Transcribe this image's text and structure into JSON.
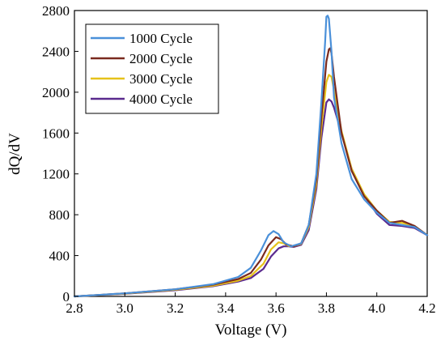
{
  "chart_data": {
    "type": "line",
    "xlabel": "Voltage (V)",
    "ylabel": "dQ/dV",
    "xlim": [
      2.8,
      4.2
    ],
    "ylim": [
      0,
      2800
    ],
    "xticks": [
      2.8,
      3.0,
      3.2,
      3.4,
      3.6,
      3.8,
      4.0,
      4.2
    ],
    "xtick_labels": [
      "2.8",
      "3.0",
      "3.2",
      "3.4",
      "3.6",
      "3.8",
      "4.0",
      "4.2"
    ],
    "yticks": [
      0,
      400,
      800,
      1200,
      1600,
      2000,
      2400,
      2800
    ],
    "ytick_labels": [
      "0",
      "400",
      "800",
      "1200",
      "1600",
      "2000",
      "2400",
      "2800"
    ],
    "grid": false,
    "legend_position": "top-left",
    "series": [
      {
        "name": "1000 Cycle",
        "color": "#4a90d9",
        "x": [
          2.8,
          3.0,
          3.2,
          3.35,
          3.45,
          3.5,
          3.54,
          3.57,
          3.59,
          3.61,
          3.63,
          3.66,
          3.7,
          3.73,
          3.76,
          3.78,
          3.795,
          3.8,
          3.805,
          3.81,
          3.82,
          3.83,
          3.86,
          3.9,
          3.95,
          4.0,
          4.05,
          4.1,
          4.15,
          4.2
        ],
        "y": [
          0,
          30,
          70,
          120,
          190,
          280,
          450,
          600,
          640,
          610,
          530,
          490,
          520,
          700,
          1200,
          1900,
          2500,
          2740,
          2750,
          2720,
          2400,
          1950,
          1500,
          1150,
          950,
          820,
          720,
          700,
          680,
          600
        ]
      },
      {
        "name": "2000 Cycle",
        "color": "#7a2a1e",
        "x": [
          2.8,
          3.0,
          3.2,
          3.35,
          3.45,
          3.5,
          3.54,
          3.57,
          3.6,
          3.62,
          3.64,
          3.67,
          3.7,
          3.73,
          3.76,
          3.78,
          3.8,
          3.81,
          3.815,
          3.82,
          3.83,
          3.86,
          3.9,
          3.95,
          4.0,
          4.05,
          4.1,
          4.15,
          4.2
        ],
        "y": [
          0,
          30,
          70,
          115,
          170,
          230,
          360,
          500,
          580,
          560,
          510,
          490,
          520,
          700,
          1150,
          1750,
          2300,
          2420,
          2430,
          2380,
          2150,
          1600,
          1230,
          980,
          840,
          720,
          740,
          690,
          600
        ]
      },
      {
        "name": "3000 Cycle",
        "color": "#e6c21a",
        "x": [
          2.8,
          3.0,
          3.2,
          3.35,
          3.45,
          3.5,
          3.55,
          3.58,
          3.61,
          3.63,
          3.65,
          3.67,
          3.7,
          3.73,
          3.76,
          3.78,
          3.8,
          3.81,
          3.82,
          3.83,
          3.86,
          3.9,
          3.95,
          4.0,
          4.05,
          4.1,
          4.15,
          4.2
        ],
        "y": [
          0,
          28,
          65,
          105,
          155,
          200,
          320,
          460,
          530,
          520,
          495,
          490,
          515,
          680,
          1100,
          1650,
          2100,
          2170,
          2150,
          2020,
          1620,
          1250,
          1000,
          840,
          730,
          720,
          690,
          600
        ]
      },
      {
        "name": "4000 Cycle",
        "color": "#5a2a8e",
        "x": [
          2.8,
          3.0,
          3.2,
          3.35,
          3.45,
          3.5,
          3.55,
          3.58,
          3.61,
          3.63,
          3.65,
          3.67,
          3.7,
          3.73,
          3.76,
          3.78,
          3.8,
          3.81,
          3.82,
          3.83,
          3.86,
          3.9,
          3.95,
          4.0,
          4.05,
          4.1,
          4.15,
          4.2
        ],
        "y": [
          0,
          25,
          60,
          100,
          145,
          180,
          270,
          390,
          470,
          490,
          490,
          485,
          505,
          650,
          1050,
          1550,
          1900,
          1930,
          1910,
          1850,
          1600,
          1250,
          990,
          810,
          700,
          690,
          670,
          600
        ]
      }
    ]
  }
}
